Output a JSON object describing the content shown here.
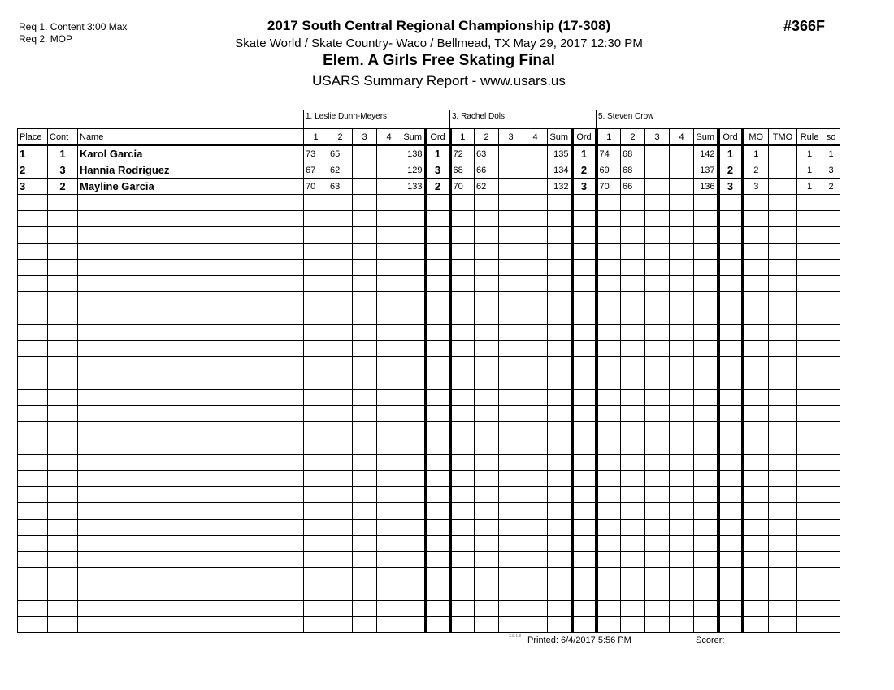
{
  "requirements": [
    "Req  1.  Content 3:00 Max",
    "Req  2.  MOP"
  ],
  "title": "2017 South Central Regional Championship (17-308)",
  "venue": "Skate World / Skate Country- Waco / Bellmead, TX  May 29, 2017  12:30 PM",
  "event_name": "Elem. A Girls Free Skating Final",
  "report": "USARS Summary Report - www.usars.us",
  "event_number": "#366F",
  "judges": [
    "1.  Leslie Dunn-Meyers",
    "3.  Rachel Dols",
    "5.  Steven Crow"
  ],
  "headers": [
    "Place",
    "Cont",
    "Name",
    "1",
    "2",
    "3",
    "4",
    "Sum",
    "Ord",
    "1",
    "2",
    "3",
    "4",
    "Sum",
    "Ord",
    "1",
    "2",
    "3",
    "4",
    "Sum",
    "Ord",
    "MO",
    "TMO",
    "Rule",
    "so"
  ],
  "rows": [
    [
      "1",
      "1",
      "Karol Garcia",
      "73",
      "65",
      "",
      "",
      "138",
      "1",
      "72",
      "63",
      "",
      "",
      "135",
      "1",
      "74",
      "68",
      "",
      "",
      "142",
      "1",
      "1",
      "",
      "1",
      "1"
    ],
    [
      "2",
      "3",
      "Hannia Rodriguez",
      "67",
      "62",
      "",
      "",
      "129",
      "3",
      "68",
      "66",
      "",
      "",
      "134",
      "2",
      "69",
      "68",
      "",
      "",
      "137",
      "2",
      "2",
      "",
      "1",
      "3"
    ],
    [
      "3",
      "2",
      "Mayline Garcia",
      "70",
      "63",
      "",
      "",
      "133",
      "2",
      "70",
      "62",
      "",
      "",
      "132",
      "3",
      "70",
      "66",
      "",
      "",
      "136",
      "3",
      "3",
      "",
      "1",
      "2"
    ]
  ],
  "empty_rows": 27,
  "footer": {
    "version": "3.8.1.8",
    "printed": "Printed:  6/4/2017  5:56 PM",
    "scorer": "Scorer:"
  }
}
